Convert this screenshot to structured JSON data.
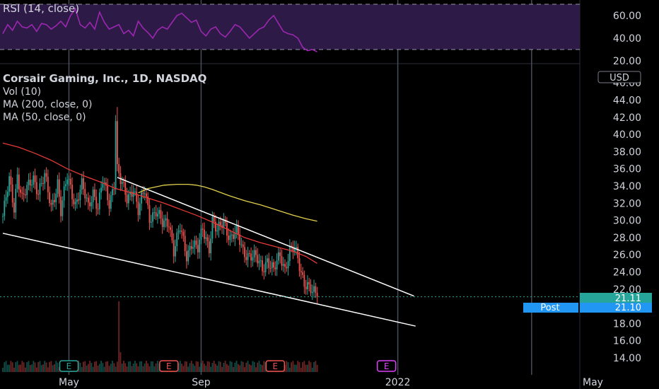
{
  "chart_data": [
    {
      "type": "line",
      "pane": "rsi",
      "title": "RSI (14, close)",
      "y_ticks": [
        "60.00",
        "40.00",
        "20.00"
      ],
      "ylim": [
        20,
        70
      ],
      "levels": [
        70,
        30
      ],
      "band_color": "#2e1a47",
      "line_color": "#9c27b0",
      "x_day": [
        0,
        3,
        6,
        9,
        12,
        15,
        18,
        21,
        24,
        27,
        30,
        33,
        36,
        39,
        42,
        45,
        48,
        51,
        54,
        57,
        60,
        63,
        66,
        69,
        72,
        75,
        78,
        81,
        84,
        87,
        90,
        93,
        96,
        99,
        102,
        105,
        108,
        111,
        114,
        117,
        120,
        123,
        126,
        129,
        132,
        135,
        138,
        141,
        144,
        147,
        150,
        153,
        156,
        159,
        162,
        165,
        168,
        171,
        174,
        177,
        180,
        183,
        186,
        189,
        192,
        195
      ],
      "values": [
        44,
        52,
        47,
        55,
        50,
        49,
        52,
        46,
        53,
        52,
        48,
        51,
        55,
        50,
        60,
        66,
        52,
        49,
        54,
        48,
        63,
        54,
        48,
        50,
        52,
        44,
        47,
        42,
        55,
        49,
        45,
        40,
        47,
        50,
        48,
        54,
        60,
        62,
        58,
        54,
        56,
        46,
        42,
        48,
        50,
        44,
        41,
        46,
        52,
        50,
        45,
        40,
        44,
        48,
        50,
        56,
        60,
        53,
        46,
        44,
        43,
        40,
        32,
        29,
        30,
        28
      ]
    },
    {
      "type": "candlestick",
      "pane": "price",
      "title": "Corsair Gaming, Inc., 1D, NASDAQ",
      "indicators": [
        "Vol (10)",
        "MA (200, close, 0)",
        "MA (50, close, 0)"
      ],
      "currency": "USD",
      "y_ticks": [
        "46.00",
        "44.00",
        "42.00",
        "40.00",
        "38.00",
        "36.00",
        "34.00",
        "32.00",
        "30.00",
        "28.00",
        "26.00",
        "24.00",
        "22.00",
        "20.00",
        "18.00",
        "16.00",
        "14.00"
      ],
      "ylim": [
        13.5,
        47
      ],
      "x_ticks": [
        {
          "label": "May",
          "day": 41
        },
        {
          "label": "Sep",
          "day": 123
        },
        {
          "label": "2022",
          "day": 245
        },
        {
          "label": "May",
          "day": 366
        }
      ],
      "x_range_days": [
        0,
        400
      ],
      "vertical_line_days": [
        41,
        123,
        245,
        328
      ],
      "up_color": "#26a69a",
      "down_color": "#ef5350",
      "close_anchor_days": [
        0,
        4,
        7,
        9,
        12,
        15,
        19,
        22,
        26,
        30,
        34,
        36,
        40,
        45,
        49,
        53,
        56,
        59,
        62,
        66,
        69,
        70,
        71,
        73,
        77,
        81,
        84,
        88,
        91,
        95,
        99,
        103,
        106,
        110,
        114,
        117,
        121,
        124,
        128,
        130,
        133,
        137,
        141,
        145,
        149,
        153,
        157,
        161,
        164,
        168,
        172,
        175,
        178,
        181,
        183,
        185,
        187,
        189,
        192,
        195
      ],
      "close_anchor_values": [
        30.5,
        34.5,
        31.5,
        35.5,
        32.5,
        33.5,
        35.0,
        33.5,
        35.0,
        31.5,
        34.5,
        31.0,
        35.0,
        32.0,
        34.0,
        31.5,
        33.5,
        31.5,
        34.5,
        32.0,
        34.5,
        42.0,
        36.0,
        34.5,
        32.5,
        34.0,
        31.0,
        33.5,
        30.5,
        31.0,
        29.5,
        30.0,
        26.5,
        29.0,
        26.0,
        27.5,
        26.5,
        29.0,
        27.0,
        30.0,
        28.5,
        30.0,
        28.0,
        28.5,
        26.5,
        26.0,
        25.5,
        24.5,
        25.5,
        24.0,
        26.0,
        24.5,
        26.5,
        26.5,
        25.5,
        24.0,
        23.0,
        22.5,
        21.5,
        21.1
      ],
      "ma50_days": [
        0,
        10,
        20,
        30,
        40,
        50,
        60,
        70,
        80,
        90,
        100,
        110,
        120,
        130,
        140,
        150,
        160,
        170,
        180,
        188,
        195
      ],
      "ma50_values": [
        39.0,
        38.5,
        37.8,
        37.0,
        36.0,
        35.2,
        34.5,
        33.7,
        33.2,
        32.6,
        32.0,
        31.3,
        30.6,
        29.8,
        28.9,
        28.0,
        27.4,
        26.9,
        26.4,
        25.8,
        25.0
      ],
      "ma200_days": [
        84,
        90,
        100,
        108,
        115,
        120,
        125,
        130,
        140,
        150,
        160,
        170,
        180,
        188,
        195
      ],
      "ma200_values": [
        33.2,
        33.7,
        34.1,
        34.2,
        34.2,
        34.1,
        33.9,
        33.6,
        32.9,
        32.3,
        31.8,
        31.2,
        30.6,
        30.2,
        29.9
      ],
      "trendlines": [
        {
          "name": "upper",
          "start": {
            "day": 71,
            "value": 35.0
          },
          "end": {
            "day": 255,
            "value": 21.2
          },
          "color": "#ffffff"
        },
        {
          "name": "lower",
          "start": {
            "day": 0,
            "value": 28.5
          },
          "end": {
            "day": 256,
            "value": 17.7
          },
          "color": "#ffffff"
        }
      ],
      "last_price": {
        "label": "21.11",
        "value": 21.11,
        "color": "#26a69a"
      },
      "post_price": {
        "label": "Post",
        "value_label": "21.10",
        "value": 21.1,
        "color": "#2196f3"
      },
      "volume_spike_day": 72,
      "earnings_markers": [
        {
          "label": "E",
          "day": 41,
          "color": "#26a69a"
        },
        {
          "label": "E",
          "day": 103,
          "color": "#ef5350"
        },
        {
          "label": "E",
          "day": 169,
          "color": "#ef5350"
        },
        {
          "label": "E",
          "day": 238,
          "color": "#e040fb"
        }
      ]
    }
  ]
}
